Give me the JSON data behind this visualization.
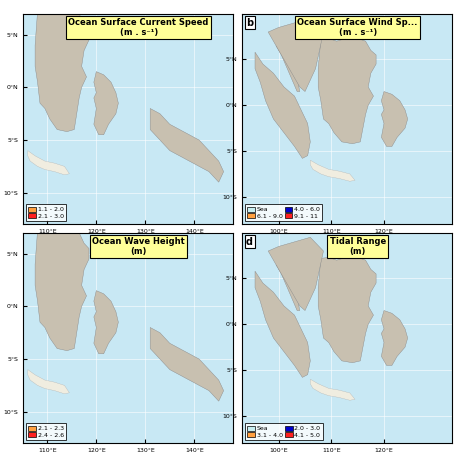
{
  "panels": [
    {
      "row": 0,
      "col": 0,
      "title_line1": "Ocean Surface Current Speed",
      "title_line2": "(m . s⁻¹)",
      "lon_min": 105,
      "lon_max": 148,
      "lat_min": -13,
      "lat_max": 7,
      "lon_ticks": [
        110,
        120,
        130,
        140
      ],
      "lat_ticks": [
        -10,
        -5,
        0,
        5
      ],
      "label": "",
      "show_label": false,
      "legend": [
        {
          "color": "#FFA040",
          "text": "1.1 - 2.0"
        },
        {
          "color": "#FF2020",
          "text": "2.1 - 3.0"
        }
      ],
      "legend_ncol": 1
    },
    {
      "row": 0,
      "col": 1,
      "title_line1": "Ocean Surface Wind Sp...",
      "title_line2": "(m . s⁻¹)",
      "lon_min": 93,
      "lon_max": 133,
      "lat_min": -13,
      "lat_max": 10,
      "lon_ticks": [
        100,
        110,
        120
      ],
      "lat_ticks": [
        -10,
        -5,
        0,
        5
      ],
      "label": "b",
      "show_label": true,
      "legend": [
        {
          "color": "#C8EEF0",
          "text": "Sea"
        },
        {
          "color": "#FFA040",
          "text": "6.1 - 9.0"
        },
        {
          "color": "#0000CC",
          "text": "4.0 - 6.0"
        },
        {
          "color": "#FF2020",
          "text": "9.1 - 11"
        }
      ],
      "legend_ncol": 2
    },
    {
      "row": 1,
      "col": 0,
      "title_line1": "Ocean Wave Height",
      "title_line2": "(m)",
      "lon_min": 105,
      "lon_max": 148,
      "lat_min": -13,
      "lat_max": 7,
      "lon_ticks": [
        110,
        120,
        130,
        140
      ],
      "lat_ticks": [
        -10,
        -5,
        0,
        5
      ],
      "label": "",
      "show_label": false,
      "legend": [
        {
          "color": "#FFA040",
          "text": "2.1 - 2.3"
        },
        {
          "color": "#FF2020",
          "text": "2.4 - 2.6"
        }
      ],
      "legend_ncol": 1
    },
    {
      "row": 1,
      "col": 1,
      "title_line1": "Tidal Range",
      "title_line2": "(m)",
      "lon_min": 93,
      "lon_max": 133,
      "lat_min": -13,
      "lat_max": 10,
      "lon_ticks": [
        100,
        110,
        120
      ],
      "lat_ticks": [
        -10,
        -5,
        0,
        5
      ],
      "label": "d",
      "show_label": true,
      "legend": [
        {
          "color": "#C8EEF0",
          "text": "Sea"
        },
        {
          "color": "#FFA040",
          "text": "3.1 - 4.0"
        },
        {
          "color": "#0000CC",
          "text": "2.0 - 3.0"
        },
        {
          "color": "#FF2020",
          "text": "4.1 - 5.0"
        }
      ],
      "legend_ncol": 2
    }
  ],
  "ocean_color": "#C8E8F4",
  "land_color": "#C8C0B0",
  "island_color": "#F0EDE0",
  "title_bg": "#FFFF99",
  "fig_width": 4.57,
  "fig_height": 4.57,
  "dpi": 100
}
